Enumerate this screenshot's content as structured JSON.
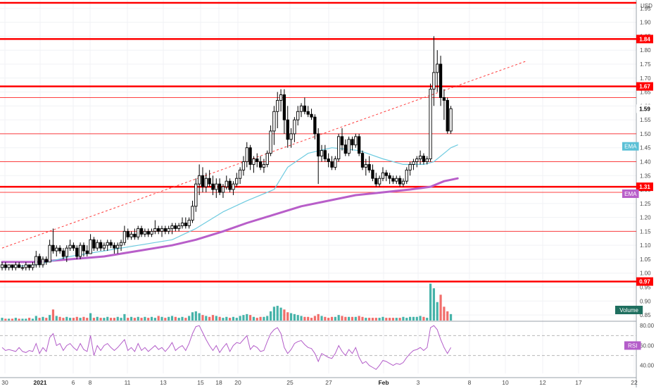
{
  "chart_data": [
    {
      "type": "candlestick",
      "currency": "USD",
      "x_tick_labels": [
        "30",
        "2021",
        "6",
        "8",
        "11",
        "13",
        "15",
        "18",
        "20",
        "25",
        "27",
        "Feb",
        "3",
        "8",
        "10",
        "12",
        "17",
        "22"
      ],
      "y_ticks": [
        "1.95",
        "1.90",
        "1.85",
        "1.80",
        "1.75",
        "1.70",
        "1.65",
        "1.60",
        "1.55",
        "1.50",
        "1.45",
        "1.40",
        "1.35",
        "1.30",
        "1.25",
        "1.20",
        "1.15",
        "1.10",
        "1.05",
        "1.00",
        "0.95",
        "0.90",
        "0.85"
      ],
      "ylim": [
        0.83,
        1.98
      ],
      "price_label": "1.59",
      "horizontal_levels": [
        {
          "value": 1.98,
          "label": "",
          "style": "thick"
        },
        {
          "value": 1.84,
          "label": "1.84",
          "style": "thick"
        },
        {
          "value": 1.67,
          "label": "1.67",
          "style": "thick"
        },
        {
          "value": 1.63,
          "label": "",
          "style": "thin"
        },
        {
          "value": 1.5,
          "label": "",
          "style": "thin"
        },
        {
          "value": 1.4,
          "label": "",
          "style": "thin"
        },
        {
          "value": 1.31,
          "label": "1.31",
          "style": "thick"
        },
        {
          "value": 1.29,
          "label": "",
          "style": "thin"
        },
        {
          "value": 1.15,
          "label": "",
          "style": "thin"
        },
        {
          "value": 0.97,
          "label": "0.97",
          "style": "thick"
        }
      ],
      "trendline": {
        "from": [
          0,
          1.09
        ],
        "to": [
          154,
          1.76
        ]
      },
      "ohlc": [
        [
          1.02,
          1.04,
          1.01,
          1.03
        ],
        [
          1.03,
          1.04,
          1.01,
          1.02
        ],
        [
          1.02,
          1.03,
          1.01,
          1.03
        ],
        [
          1.03,
          1.03,
          1.01,
          1.02
        ],
        [
          1.02,
          1.04,
          1.01,
          1.03
        ],
        [
          1.03,
          1.04,
          1.02,
          1.02
        ],
        [
          1.02,
          1.03,
          1.01,
          1.02
        ],
        [
          1.02,
          1.04,
          1.01,
          1.03
        ],
        [
          1.03,
          1.03,
          1.01,
          1.02
        ],
        [
          1.02,
          1.04,
          1.01,
          1.03
        ],
        [
          1.03,
          1.08,
          1.02,
          1.06
        ],
        [
          1.06,
          1.07,
          1.02,
          1.03
        ],
        [
          1.03,
          1.06,
          1.02,
          1.05
        ],
        [
          1.05,
          1.06,
          1.03,
          1.04
        ],
        [
          1.04,
          1.12,
          1.04,
          1.1
        ],
        [
          1.1,
          1.16,
          1.07,
          1.08
        ],
        [
          1.08,
          1.1,
          1.06,
          1.09
        ],
        [
          1.09,
          1.1,
          1.07,
          1.08
        ],
        [
          1.08,
          1.09,
          1.05,
          1.06
        ],
        [
          1.06,
          1.1,
          1.04,
          1.09
        ],
        [
          1.09,
          1.12,
          1.08,
          1.1
        ],
        [
          1.1,
          1.11,
          1.08,
          1.09
        ],
        [
          1.09,
          1.1,
          1.05,
          1.06
        ],
        [
          1.06,
          1.11,
          1.05,
          1.1
        ],
        [
          1.1,
          1.11,
          1.06,
          1.08
        ],
        [
          1.08,
          1.1,
          1.06,
          1.07
        ],
        [
          1.07,
          1.14,
          1.07,
          1.12
        ],
        [
          1.12,
          1.13,
          1.08,
          1.09
        ],
        [
          1.09,
          1.12,
          1.08,
          1.11
        ],
        [
          1.11,
          1.12,
          1.08,
          1.09
        ],
        [
          1.09,
          1.11,
          1.08,
          1.1
        ],
        [
          1.1,
          1.12,
          1.08,
          1.11
        ],
        [
          1.11,
          1.12,
          1.09,
          1.1
        ],
        [
          1.1,
          1.11,
          1.07,
          1.09
        ],
        [
          1.09,
          1.11,
          1.07,
          1.1
        ],
        [
          1.1,
          1.12,
          1.08,
          1.11
        ],
        [
          1.11,
          1.17,
          1.1,
          1.15
        ],
        [
          1.15,
          1.16,
          1.12,
          1.13
        ],
        [
          1.13,
          1.15,
          1.12,
          1.14
        ],
        [
          1.14,
          1.16,
          1.12,
          1.13
        ],
        [
          1.13,
          1.17,
          1.12,
          1.16
        ],
        [
          1.16,
          1.17,
          1.13,
          1.14
        ],
        [
          1.14,
          1.16,
          1.13,
          1.15
        ],
        [
          1.15,
          1.16,
          1.13,
          1.14
        ],
        [
          1.14,
          1.16,
          1.13,
          1.15
        ],
        [
          1.15,
          1.19,
          1.14,
          1.16
        ],
        [
          1.16,
          1.17,
          1.14,
          1.15
        ],
        [
          1.15,
          1.17,
          1.13,
          1.16
        ],
        [
          1.16,
          1.17,
          1.14,
          1.15
        ],
        [
          1.15,
          1.17,
          1.14,
          1.16
        ],
        [
          1.16,
          1.18,
          1.14,
          1.17
        ],
        [
          1.17,
          1.18,
          1.15,
          1.16
        ],
        [
          1.16,
          1.18,
          1.15,
          1.17
        ],
        [
          1.17,
          1.2,
          1.16,
          1.18
        ],
        [
          1.18,
          1.2,
          1.16,
          1.17
        ],
        [
          1.17,
          1.2,
          1.16,
          1.19
        ],
        [
          1.19,
          1.26,
          1.18,
          1.24
        ],
        [
          1.24,
          1.34,
          1.22,
          1.32
        ],
        [
          1.32,
          1.39,
          1.28,
          1.35
        ],
        [
          1.35,
          1.38,
          1.29,
          1.31
        ],
        [
          1.31,
          1.36,
          1.29,
          1.34
        ],
        [
          1.34,
          1.37,
          1.31,
          1.32
        ],
        [
          1.32,
          1.35,
          1.28,
          1.3
        ],
        [
          1.3,
          1.34,
          1.27,
          1.32
        ],
        [
          1.32,
          1.34,
          1.28,
          1.29
        ],
        [
          1.29,
          1.32,
          1.27,
          1.31
        ],
        [
          1.31,
          1.35,
          1.3,
          1.33
        ],
        [
          1.33,
          1.34,
          1.29,
          1.3
        ],
        [
          1.3,
          1.33,
          1.28,
          1.32
        ],
        [
          1.32,
          1.36,
          1.31,
          1.34
        ],
        [
          1.34,
          1.38,
          1.32,
          1.37
        ],
        [
          1.37,
          1.42,
          1.35,
          1.4
        ],
        [
          1.4,
          1.47,
          1.38,
          1.45
        ],
        [
          1.45,
          1.46,
          1.37,
          1.39
        ],
        [
          1.39,
          1.42,
          1.36,
          1.41
        ],
        [
          1.41,
          1.43,
          1.38,
          1.4
        ],
        [
          1.4,
          1.42,
          1.37,
          1.38
        ],
        [
          1.38,
          1.41,
          1.36,
          1.39
        ],
        [
          1.39,
          1.44,
          1.38,
          1.43
        ],
        [
          1.43,
          1.53,
          1.42,
          1.51
        ],
        [
          1.51,
          1.6,
          1.46,
          1.58
        ],
        [
          1.58,
          1.65,
          1.52,
          1.62
        ],
        [
          1.62,
          1.66,
          1.58,
          1.64
        ],
        [
          1.64,
          1.66,
          1.5,
          1.55
        ],
        [
          1.55,
          1.6,
          1.45,
          1.48
        ],
        [
          1.48,
          1.52,
          1.45,
          1.5
        ],
        [
          1.5,
          1.56,
          1.47,
          1.55
        ],
        [
          1.55,
          1.6,
          1.53,
          1.58
        ],
        [
          1.58,
          1.61,
          1.56,
          1.6
        ],
        [
          1.6,
          1.63,
          1.57,
          1.58
        ],
        [
          1.58,
          1.6,
          1.56,
          1.57
        ],
        [
          1.57,
          1.59,
          1.55,
          1.56
        ],
        [
          1.56,
          1.57,
          1.48,
          1.5
        ],
        [
          1.5,
          1.52,
          1.32,
          1.42
        ],
        [
          1.42,
          1.46,
          1.4,
          1.44
        ],
        [
          1.44,
          1.46,
          1.4,
          1.41
        ],
        [
          1.41,
          1.43,
          1.38,
          1.4
        ],
        [
          1.4,
          1.42,
          1.37,
          1.38
        ],
        [
          1.38,
          1.42,
          1.37,
          1.41
        ],
        [
          1.41,
          1.5,
          1.4,
          1.49
        ],
        [
          1.49,
          1.52,
          1.44,
          1.46
        ],
        [
          1.46,
          1.48,
          1.42,
          1.43
        ],
        [
          1.43,
          1.49,
          1.42,
          1.48
        ],
        [
          1.48,
          1.49,
          1.44,
          1.46
        ],
        [
          1.46,
          1.5,
          1.45,
          1.49
        ],
        [
          1.49,
          1.5,
          1.42,
          1.43
        ],
        [
          1.43,
          1.44,
          1.37,
          1.38
        ],
        [
          1.38,
          1.41,
          1.35,
          1.39
        ],
        [
          1.39,
          1.42,
          1.36,
          1.37
        ],
        [
          1.37,
          1.39,
          1.33,
          1.34
        ],
        [
          1.34,
          1.36,
          1.31,
          1.32
        ],
        [
          1.32,
          1.35,
          1.31,
          1.34
        ],
        [
          1.34,
          1.38,
          1.33,
          1.36
        ],
        [
          1.36,
          1.37,
          1.33,
          1.35
        ],
        [
          1.35,
          1.36,
          1.32,
          1.34
        ],
        [
          1.34,
          1.35,
          1.32,
          1.33
        ],
        [
          1.33,
          1.35,
          1.32,
          1.34
        ],
        [
          1.34,
          1.35,
          1.31,
          1.32
        ],
        [
          1.32,
          1.34,
          1.31,
          1.33
        ],
        [
          1.33,
          1.38,
          1.32,
          1.37
        ],
        [
          1.37,
          1.4,
          1.35,
          1.39
        ],
        [
          1.39,
          1.41,
          1.37,
          1.4
        ],
        [
          1.4,
          1.42,
          1.38,
          1.41
        ],
        [
          1.41,
          1.44,
          1.39,
          1.42
        ],
        [
          1.42,
          1.43,
          1.39,
          1.4
        ],
        [
          1.4,
          1.42,
          1.39,
          1.41
        ],
        [
          1.41,
          1.68,
          1.4,
          1.66
        ],
        [
          1.66,
          1.85,
          1.6,
          1.72
        ],
        [
          1.72,
          1.8,
          1.65,
          1.75
        ],
        [
          1.75,
          1.78,
          1.6,
          1.63
        ],
        [
          1.63,
          1.66,
          1.55,
          1.62
        ],
        [
          1.62,
          1.63,
          1.5,
          1.51
        ],
        [
          1.51,
          1.6,
          1.5,
          1.59
        ]
      ],
      "ema_short": {
        "name": "EMA",
        "color": "#6ecbe0",
        "points": [
          [
            0,
            1.02
          ],
          [
            10,
            1.03
          ],
          [
            20,
            1.06
          ],
          [
            30,
            1.08
          ],
          [
            40,
            1.1
          ],
          [
            50,
            1.12
          ],
          [
            57,
            1.16
          ],
          [
            65,
            1.22
          ],
          [
            72,
            1.26
          ],
          [
            80,
            1.3
          ],
          [
            84,
            1.38
          ],
          [
            90,
            1.43
          ],
          [
            97,
            1.45
          ],
          [
            105,
            1.44
          ],
          [
            112,
            1.41
          ],
          [
            118,
            1.39
          ],
          [
            124,
            1.39
          ],
          [
            127,
            1.4
          ],
          [
            132,
            1.45
          ],
          [
            134,
            1.46
          ]
        ]
      },
      "ema_long": {
        "name": "EMA",
        "color": "#b85ec9",
        "points": [
          [
            0,
            1.04
          ],
          [
            10,
            1.04
          ],
          [
            20,
            1.05
          ],
          [
            30,
            1.06
          ],
          [
            40,
            1.08
          ],
          [
            50,
            1.1
          ],
          [
            57,
            1.12
          ],
          [
            65,
            1.15
          ],
          [
            72,
            1.18
          ],
          [
            80,
            1.21
          ],
          [
            88,
            1.24
          ],
          [
            96,
            1.26
          ],
          [
            104,
            1.28
          ],
          [
            112,
            1.29
          ],
          [
            120,
            1.3
          ],
          [
            126,
            1.31
          ],
          [
            130,
            1.33
          ],
          [
            134,
            1.34
          ]
        ]
      },
      "volume": {
        "name": "Volume",
        "values": [
          3,
          2,
          2,
          2,
          3,
          2,
          2,
          2,
          3,
          2,
          5,
          3,
          4,
          3,
          6,
          12,
          5,
          4,
          3,
          4,
          3,
          3,
          4,
          3,
          4,
          3,
          8,
          3,
          4,
          3,
          3,
          4,
          3,
          3,
          4,
          3,
          7,
          3,
          4,
          3,
          4,
          3,
          4,
          3,
          4,
          3,
          5,
          4,
          3,
          4,
          5,
          4,
          3,
          4,
          3,
          5,
          9,
          10,
          8,
          6,
          5,
          4,
          6,
          5,
          4,
          3,
          4,
          3,
          4,
          3,
          5,
          6,
          7,
          6,
          4,
          3,
          4,
          4,
          5,
          10,
          15,
          16,
          14,
          12,
          9,
          8,
          7,
          6,
          5,
          4,
          4,
          3,
          5,
          7,
          5,
          4,
          3,
          4,
          4,
          6,
          5,
          4,
          4,
          4,
          4,
          5,
          4,
          3,
          3,
          3,
          3,
          3,
          4,
          3,
          3,
          3,
          3,
          3,
          4,
          3,
          4,
          4,
          4,
          5,
          4,
          3,
          40,
          35,
          20,
          28,
          15,
          10,
          7
        ],
        "max": 42
      },
      "rsi": {
        "name": "RSI",
        "y_ticks": [
          "80.00",
          "60.00",
          "40.00"
        ],
        "ylim": [
          32,
          83
        ],
        "values": [
          58,
          55,
          56,
          55,
          54,
          58,
          54,
          53,
          55,
          54,
          62,
          52,
          58,
          54,
          68,
          72,
          60,
          62,
          55,
          60,
          62,
          58,
          55,
          62,
          56,
          54,
          70,
          50,
          60,
          55,
          60,
          62,
          58,
          55,
          58,
          62,
          66,
          55,
          58,
          54,
          62,
          55,
          58,
          54,
          57,
          60,
          56,
          58,
          54,
          58,
          63,
          55,
          58,
          60,
          55,
          62,
          72,
          79,
          80,
          73,
          66,
          60,
          55,
          60,
          53,
          58,
          62,
          54,
          60,
          63,
          62,
          66,
          70,
          56,
          60,
          58,
          54,
          55,
          64,
          72,
          76,
          78,
          72,
          58,
          52,
          56,
          62,
          64,
          65,
          61,
          58,
          57,
          52,
          44,
          52,
          50,
          48,
          47,
          52,
          60,
          54,
          50,
          56,
          52,
          58,
          48,
          42,
          44,
          40,
          38,
          36,
          40,
          45,
          44,
          42,
          40,
          42,
          41,
          43,
          48,
          52,
          55,
          56,
          58,
          55,
          58,
          78,
          80,
          76,
          66,
          58,
          52,
          58
        ]
      }
    }
  ]
}
